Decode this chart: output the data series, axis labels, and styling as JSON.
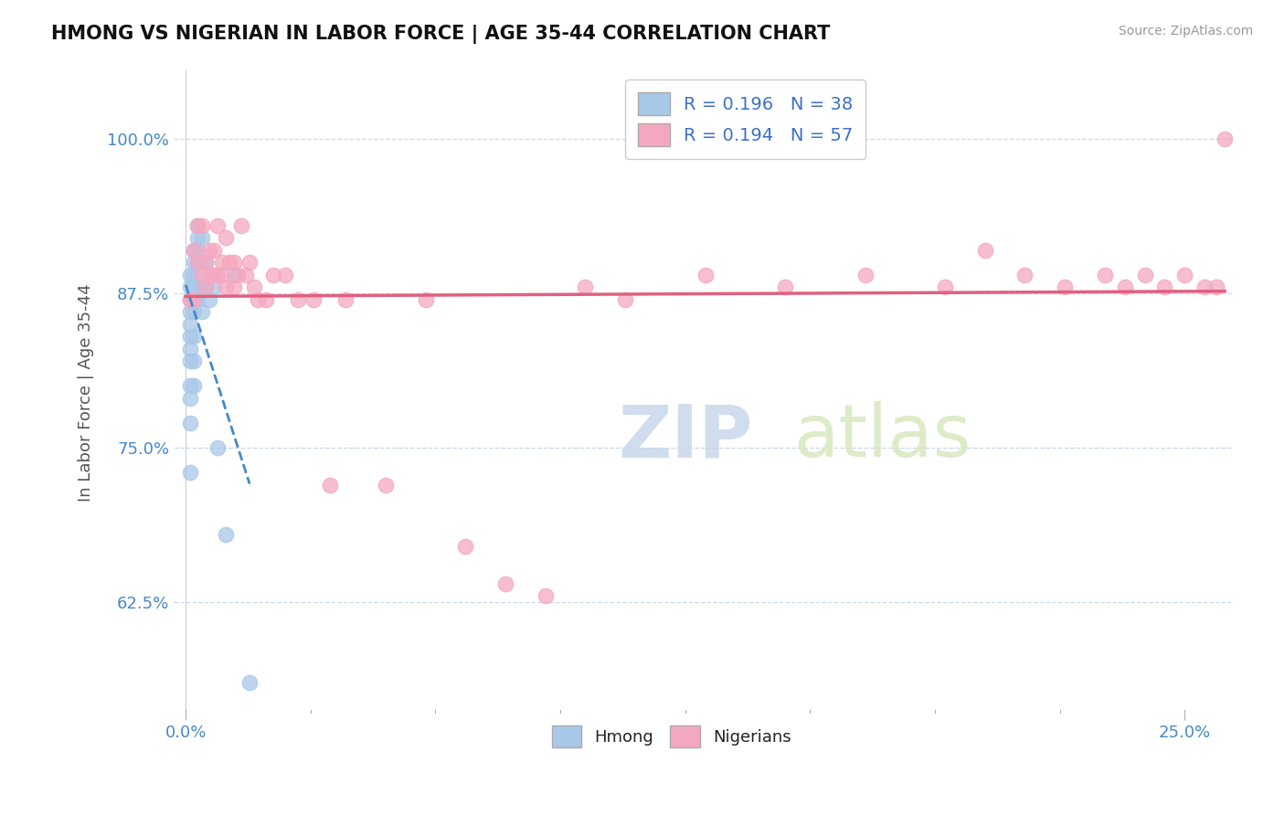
{
  "title": "HMONG VS NIGERIAN IN LABOR FORCE | AGE 35-44 CORRELATION CHART",
  "source": "Source: ZipAtlas.com",
  "ylabel": "In Labor Force | Age 35-44",
  "yticks_labels": [
    "62.5%",
    "75.0%",
    "87.5%",
    "100.0%"
  ],
  "ytick_vals": [
    0.625,
    0.75,
    0.875,
    1.0
  ],
  "xlim": [
    -0.003,
    0.262
  ],
  "ylim": [
    0.535,
    1.055
  ],
  "hmong_R": 0.196,
  "hmong_N": 38,
  "nigerian_R": 0.194,
  "nigerian_N": 57,
  "hmong_color": "#a8c8e8",
  "nigerian_color": "#f4a8c0",
  "hmong_trend_color": "#4488cc",
  "nigerian_trend_color": "#e06080",
  "background_color": "#ffffff",
  "watermark_zip": "ZIP",
  "watermark_atlas": "atlas",
  "hmong_x": [
    0.001,
    0.001,
    0.001,
    0.001,
    0.001,
    0.001,
    0.001,
    0.001,
    0.001,
    0.001,
    0.001,
    0.001,
    0.002,
    0.002,
    0.002,
    0.002,
    0.002,
    0.002,
    0.002,
    0.002,
    0.002,
    0.003,
    0.003,
    0.003,
    0.003,
    0.003,
    0.004,
    0.004,
    0.004,
    0.004,
    0.005,
    0.005,
    0.006,
    0.007,
    0.008,
    0.01,
    0.012,
    0.016
  ],
  "hmong_y": [
    0.88,
    0.89,
    0.87,
    0.86,
    0.85,
    0.84,
    0.83,
    0.82,
    0.8,
    0.79,
    0.77,
    0.73,
    0.91,
    0.9,
    0.89,
    0.88,
    0.87,
    0.86,
    0.84,
    0.82,
    0.8,
    0.93,
    0.92,
    0.91,
    0.9,
    0.87,
    0.92,
    0.9,
    0.88,
    0.86,
    0.9,
    0.88,
    0.87,
    0.88,
    0.75,
    0.68,
    0.89,
    0.56
  ],
  "nigerian_x": [
    0.001,
    0.002,
    0.002,
    0.003,
    0.003,
    0.004,
    0.004,
    0.005,
    0.005,
    0.006,
    0.006,
    0.007,
    0.007,
    0.008,
    0.008,
    0.009,
    0.009,
    0.01,
    0.01,
    0.011,
    0.012,
    0.012,
    0.013,
    0.014,
    0.015,
    0.016,
    0.017,
    0.018,
    0.02,
    0.022,
    0.025,
    0.028,
    0.032,
    0.036,
    0.04,
    0.05,
    0.06,
    0.07,
    0.08,
    0.09,
    0.1,
    0.11,
    0.13,
    0.15,
    0.17,
    0.19,
    0.2,
    0.21,
    0.22,
    0.23,
    0.235,
    0.24,
    0.245,
    0.25,
    0.255,
    0.258,
    0.26
  ],
  "nigerian_y": [
    0.87,
    0.91,
    0.87,
    0.93,
    0.9,
    0.93,
    0.89,
    0.9,
    0.88,
    0.91,
    0.89,
    0.91,
    0.89,
    0.93,
    0.89,
    0.9,
    0.89,
    0.92,
    0.88,
    0.9,
    0.9,
    0.88,
    0.89,
    0.93,
    0.89,
    0.9,
    0.88,
    0.87,
    0.87,
    0.89,
    0.89,
    0.87,
    0.87,
    0.72,
    0.87,
    0.72,
    0.87,
    0.67,
    0.64,
    0.63,
    0.88,
    0.87,
    0.89,
    0.88,
    0.89,
    0.88,
    0.91,
    0.89,
    0.88,
    0.89,
    0.88,
    0.89,
    0.88,
    0.89,
    0.88,
    0.88,
    1.0
  ]
}
